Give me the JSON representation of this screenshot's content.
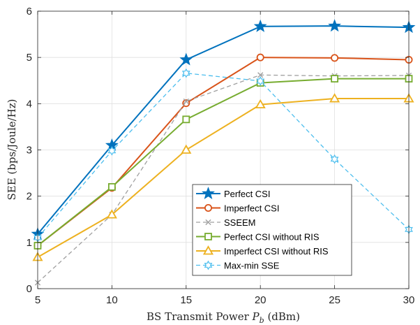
{
  "chart_data": {
    "type": "line",
    "xlabel": "BS Transmit Power P_b (dBm)",
    "ylabel": "SEE (bps/Joule/Hz)",
    "x": [
      5,
      10,
      15,
      20,
      25,
      30
    ],
    "xlim": [
      5,
      30
    ],
    "ylim": [
      0,
      6
    ],
    "xticks": [
      "5",
      "10",
      "15",
      "20",
      "25",
      "30"
    ],
    "yticks": [
      "0",
      "1",
      "2",
      "3",
      "4",
      "5",
      "6"
    ],
    "grid": true,
    "legend_position": "bottom-right",
    "series": [
      {
        "name": "Perfect CSI",
        "values": [
          1.18,
          3.1,
          4.95,
          5.67,
          5.68,
          5.65
        ],
        "color": "#0072BD",
        "marker": "star",
        "dash": "solid"
      },
      {
        "name": "Imperfect CSI",
        "values": [
          0.93,
          2.18,
          4.01,
          5.0,
          4.99,
          4.95
        ],
        "color": "#D95319",
        "marker": "circle",
        "dash": "solid"
      },
      {
        "name": "SSEEM",
        "values": [
          0.13,
          1.6,
          4.05,
          4.62,
          4.6,
          4.61
        ],
        "color": "#A0A0A0",
        "marker": "x",
        "dash": "dashed"
      },
      {
        "name": "Perfect CSI  without RIS",
        "values": [
          0.93,
          2.2,
          3.66,
          4.45,
          4.54,
          4.54
        ],
        "color": "#77AC30",
        "marker": "square",
        "dash": "solid"
      },
      {
        "name": "Imperfect CSI  without RIS",
        "values": [
          0.68,
          1.6,
          3.0,
          3.98,
          4.11,
          4.11
        ],
        "color": "#EDB120",
        "marker": "triangle",
        "dash": "solid"
      },
      {
        "name": "Max-min SSE",
        "values": [
          1.1,
          2.98,
          4.66,
          4.49,
          2.8,
          1.28
        ],
        "color": "#4DBEEE",
        "marker": "hexagram",
        "dash": "dashed"
      }
    ]
  }
}
